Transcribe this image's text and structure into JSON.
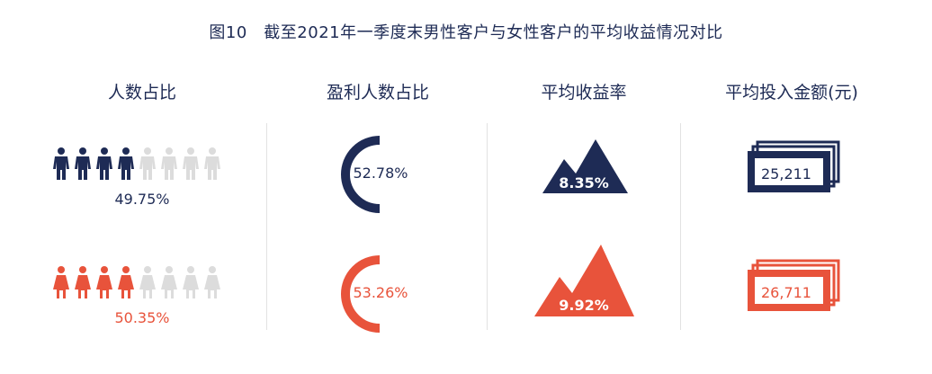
{
  "title": "图10　截至2021年一季度末男性客户与女性客户的平均收益情况对比",
  "columns": [
    "人数占比",
    "盈利人数占比",
    "平均收益率",
    "平均投入金额(元)"
  ],
  "colors": {
    "male": "#1e2b55",
    "female": "#e8533b",
    "inactive": "#dcdcdc"
  },
  "chart_data": {
    "type": "table",
    "title": "图10　截至2021年一季度末男性客户与女性客户的平均收益情况对比",
    "columns": [
      "人数占比",
      "盈利人数占比",
      "平均收益率",
      "平均投入金额(元)"
    ],
    "rows": [
      {
        "values": [
          "49.75%",
          "52.78%",
          "8.35%",
          "25,211"
        ],
        "share": 49.75,
        "profit_share": 52.78,
        "return_rate": 8.35,
        "avg_investment": 25211
      },
      {
        "values": [
          "50.35%",
          "53.26%",
          "9.92%",
          "26,711"
        ],
        "share": 50.35,
        "profit_share": 53.26,
        "return_rate": 9.92,
        "avg_investment": 26711
      }
    ]
  }
}
